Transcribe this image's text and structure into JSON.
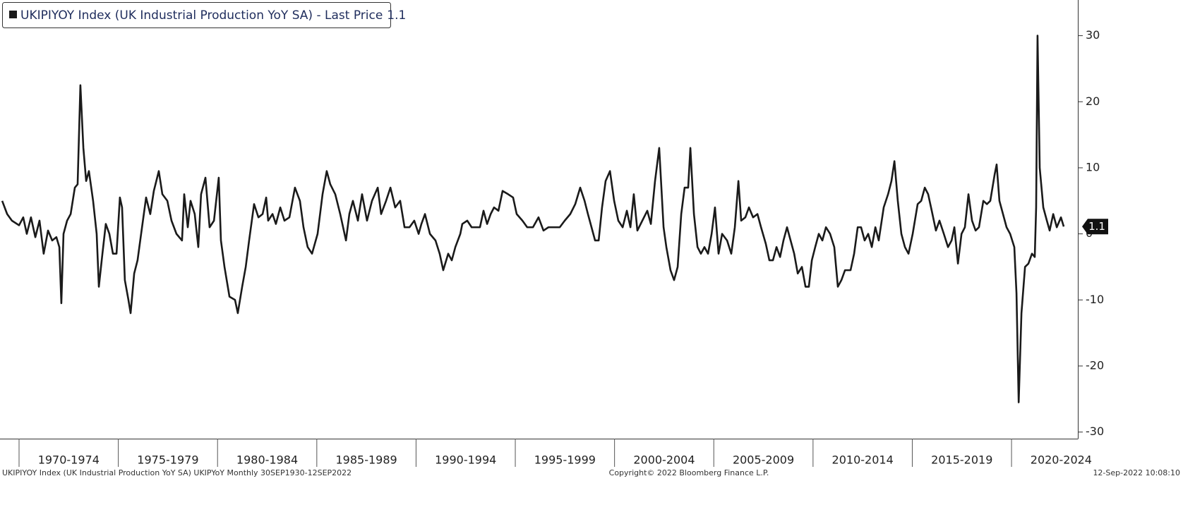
{
  "chart_data": {
    "type": "line",
    "legend_name": "UKIPIYOY Index (UK Industrial Production YoY SA) - Last Price",
    "last_price": 1.1,
    "footer_left": "UKIPIYOY Index (UK Industrial Production YoY SA) UKIPYoY  Monthly 30SEP1930-12SEP2022",
    "footer_center": "Copyright© 2022 Bloomberg Finance L.P.",
    "footer_right": "12-Sep-2022 10:08:10",
    "xlim": [
      1969.04,
      2023.34
    ],
    "xticks": [
      {
        "value": 1970,
        "label": "1970-1974"
      },
      {
        "value": 1975,
        "label": "1975-1979"
      },
      {
        "value": 1980,
        "label": "1980-1984"
      },
      {
        "value": 1985,
        "label": "1985-1989"
      },
      {
        "value": 1990,
        "label": "1990-1994"
      },
      {
        "value": 1995,
        "label": "1995-1999"
      },
      {
        "value": 2000,
        "label": "2000-2004"
      },
      {
        "value": 2005,
        "label": "2005-2009"
      },
      {
        "value": 2010,
        "label": "2010-2014"
      },
      {
        "value": 2015,
        "label": "2015-2019"
      },
      {
        "value": 2020,
        "label": "2020-2024"
      }
    ],
    "ylim": [
      -31,
      35.4
    ],
    "yticks": [
      -30,
      -20,
      -10,
      0,
      10,
      20,
      30
    ],
    "x": [
      1969.15,
      1969.4,
      1969.64,
      1970.0,
      1970.21,
      1970.39,
      1970.6,
      1970.82,
      1971.03,
      1971.24,
      1971.46,
      1971.67,
      1971.88,
      1972.03,
      1972.13,
      1972.24,
      1972.42,
      1972.6,
      1972.81,
      1972.95,
      1973.09,
      1973.24,
      1973.38,
      1973.52,
      1973.73,
      1973.91,
      1974.02,
      1974.2,
      1974.37,
      1974.55,
      1974.73,
      1974.91,
      1975.08,
      1975.19,
      1975.33,
      1975.51,
      1975.62,
      1975.8,
      1975.97,
      1976.15,
      1976.4,
      1976.61,
      1976.79,
      1977.04,
      1977.22,
      1977.47,
      1977.68,
      1977.93,
      1978.21,
      1978.32,
      1978.5,
      1978.64,
      1978.85,
      1979.03,
      1979.17,
      1979.39,
      1979.6,
      1979.82,
      1980.06,
      1980.17,
      1980.35,
      1980.6,
      1980.88,
      1981.02,
      1981.24,
      1981.42,
      1981.59,
      1981.84,
      1982.06,
      1982.27,
      1982.45,
      1982.55,
      1982.77,
      1982.94,
      1983.16,
      1983.37,
      1983.62,
      1983.9,
      1984.15,
      1984.33,
      1984.54,
      1984.76,
      1985.04,
      1985.29,
      1985.5,
      1985.68,
      1985.93,
      1986.18,
      1986.47,
      1986.64,
      1986.82,
      1987.07,
      1987.28,
      1987.53,
      1987.78,
      1988.07,
      1988.24,
      1988.49,
      1988.71,
      1988.95,
      1989.2,
      1989.42,
      1989.67,
      1989.91,
      1990.13,
      1990.27,
      1990.45,
      1990.7,
      1990.98,
      1991.19,
      1991.37,
      1991.62,
      1991.8,
      1991.98,
      1992.23,
      1992.33,
      1992.58,
      1992.8,
      1993.04,
      1993.22,
      1993.4,
      1993.58,
      1993.76,
      1993.93,
      1994.15,
      1994.36,
      1994.64,
      1994.89,
      1995.07,
      1995.36,
      1995.6,
      1995.89,
      1996.17,
      1996.42,
      1996.67,
      1996.96,
      1997.24,
      1997.49,
      1997.77,
      1998.02,
      1998.27,
      1998.49,
      1998.66,
      1998.84,
      1999.02,
      1999.2,
      1999.37,
      1999.55,
      1999.77,
      1999.98,
      2000.19,
      2000.41,
      2000.62,
      2000.8,
      2000.97,
      2001.15,
      2001.4,
      2001.65,
      2001.83,
      2002.04,
      2002.25,
      2002.47,
      2002.61,
      2002.82,
      2003.0,
      2003.18,
      2003.36,
      2003.53,
      2003.71,
      2003.82,
      2004.0,
      2004.18,
      2004.35,
      2004.53,
      2004.71,
      2004.89,
      2005.06,
      2005.24,
      2005.42,
      2005.67,
      2005.88,
      2006.06,
      2006.24,
      2006.38,
      2006.59,
      2006.77,
      2006.98,
      2007.2,
      2007.38,
      2007.62,
      2007.8,
      2007.98,
      2008.16,
      2008.34,
      2008.51,
      2008.69,
      2008.87,
      2009.05,
      2009.23,
      2009.44,
      2009.62,
      2009.79,
      2009.94,
      2010.11,
      2010.29,
      2010.47,
      2010.65,
      2010.86,
      2011.07,
      2011.25,
      2011.43,
      2011.61,
      2011.89,
      2012.07,
      2012.25,
      2012.42,
      2012.6,
      2012.78,
      2012.96,
      2013.14,
      2013.31,
      2013.56,
      2013.78,
      2013.95,
      2014.1,
      2014.27,
      2014.45,
      2014.63,
      2014.81,
      2015.02,
      2015.27,
      2015.45,
      2015.63,
      2015.8,
      2015.98,
      2016.19,
      2016.37,
      2016.59,
      2016.8,
      2016.98,
      2017.12,
      2017.3,
      2017.48,
      2017.65,
      2017.83,
      2018.01,
      2018.19,
      2018.36,
      2018.58,
      2018.76,
      2018.93,
      2019.15,
      2019.25,
      2019.39,
      2019.57,
      2019.75,
      2019.93,
      2020.14,
      2020.25,
      2020.36,
      2020.5,
      2020.68,
      2020.85,
      2021.03,
      2021.17,
      2021.24,
      2021.31,
      2021.42,
      2021.6,
      2021.78,
      2021.92,
      2022.1,
      2022.28,
      2022.49,
      2022.63
    ],
    "series": [
      {
        "name": "UKIPIYOY Index",
        "color": "#1a1a1a",
        "values": [
          5,
          3,
          2,
          1.3,
          2.5,
          0,
          2.5,
          -0.5,
          2,
          -3,
          0.5,
          -1,
          -0.5,
          -2,
          -10.5,
          0,
          2,
          3,
          7,
          7.5,
          22.5,
          13,
          8,
          9.5,
          5,
          0,
          -8,
          -3,
          1.5,
          0,
          -3,
          -3,
          5.5,
          4,
          -7,
          -10,
          -12,
          -6,
          -4,
          0,
          5.5,
          3,
          6.5,
          9.5,
          6,
          5,
          2,
          0,
          -1,
          6,
          1,
          5,
          3,
          -2,
          6,
          8.5,
          1,
          2,
          8.5,
          -1,
          -5,
          -9.5,
          -10,
          -12,
          -8,
          -5,
          -1,
          4.5,
          2.5,
          3,
          5.5,
          2,
          3,
          1.5,
          4,
          2,
          2.5,
          7,
          5,
          1,
          -2,
          -3,
          0,
          6,
          9.5,
          7.5,
          6,
          3,
          -1,
          3,
          5,
          2,
          6,
          2,
          5,
          7,
          3,
          5,
          7,
          4,
          5,
          1,
          1,
          2,
          0,
          1.5,
          3,
          0,
          -1,
          -3,
          -5.5,
          -3,
          -4,
          -2,
          0,
          1.5,
          2,
          1,
          1,
          1,
          3.5,
          1.5,
          3,
          4,
          3.5,
          6.5,
          6,
          5.5,
          3,
          2,
          1,
          1,
          2.5,
          0.5,
          1,
          1,
          1,
          2,
          3,
          4.5,
          7,
          5,
          3,
          1,
          -1,
          -1,
          4,
          8,
          9.5,
          5,
          2,
          1,
          3.5,
          1,
          6,
          0.5,
          2,
          3.5,
          1.5,
          8,
          13,
          1,
          -2,
          -5.5,
          -7,
          -5,
          3,
          7,
          7,
          13,
          3,
          -2,
          -3,
          -2,
          -3,
          0,
          4,
          -3,
          0,
          -1,
          -3,
          1,
          8,
          2,
          2.5,
          4,
          2.5,
          3,
          1,
          -1.5,
          -4,
          -4,
          -2,
          -3.5,
          -1,
          1,
          -1,
          -3,
          -6,
          -5,
          -8,
          -8,
          -4,
          -2,
          0,
          -1,
          1,
          0,
          -2,
          -8,
          -7,
          -5.5,
          -5.5,
          -3,
          1,
          1,
          -1,
          0,
          -2,
          1,
          -1,
          4,
          6,
          8,
          11,
          5,
          0,
          -2,
          -3,
          0,
          4.5,
          5,
          7,
          6,
          3.5,
          0.5,
          2,
          0,
          -2,
          -1,
          1,
          -4.5,
          0,
          1,
          6,
          2,
          0.5,
          1,
          5,
          4.5,
          5,
          9,
          10.5,
          5,
          3,
          1,
          0,
          -2,
          -9,
          -25.5,
          -12,
          -5,
          -4.5,
          -3,
          -3.5,
          4,
          30,
          10,
          4,
          2,
          0.5,
          3,
          1,
          2.5,
          1.1
        ]
      }
    ]
  }
}
